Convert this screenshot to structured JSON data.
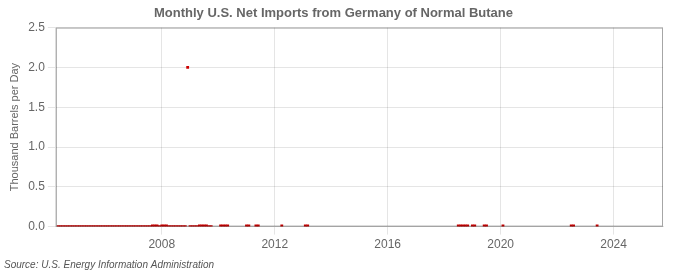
{
  "chart_data": {
    "type": "scatter",
    "title": "Monthly U.S. Net Imports from Germany of Normal Butane",
    "ylabel": "Thousand Barrels per Day",
    "annotation": "Source: U.S. Energy Information Administration",
    "color": "#cc0000",
    "marker": "square",
    "grid": true,
    "xlim": [
      2004.25,
      2025.75
    ],
    "xticks": [
      2008,
      2012,
      2016,
      2020,
      2024
    ],
    "ylim": [
      0.0,
      2.5
    ],
    "yticks": [
      {
        "value": 0.0,
        "label": "0.0"
      },
      0.5,
      {
        "value": 1.0,
        "label": "1.0"
      },
      1.5,
      {
        "value": 2.0,
        "label": "2.0"
      },
      2.5
    ],
    "x": [
      2004.333,
      2004.417,
      2004.5,
      2004.583,
      2004.667,
      2004.75,
      2004.833,
      2004.917,
      2005.0,
      2005.083,
      2005.167,
      2005.25,
      2005.333,
      2005.417,
      2005.5,
      2005.583,
      2005.667,
      2005.75,
      2005.833,
      2005.917,
      2006.0,
      2006.083,
      2006.167,
      2006.25,
      2006.333,
      2006.417,
      2006.5,
      2006.583,
      2006.667,
      2006.75,
      2006.833,
      2006.917,
      2007.0,
      2007.083,
      2007.167,
      2007.25,
      2007.333,
      2007.417,
      2007.5,
      2007.583,
      2007.667,
      2007.75,
      2007.833,
      2007.917,
      2008.0,
      2008.083,
      2008.167,
      2008.25,
      2008.333,
      2008.417,
      2008.5,
      2008.583,
      2008.667,
      2008.75,
      2008.833,
      2008.917,
      2009.0,
      2009.083,
      2009.167,
      2009.25,
      2009.333,
      2009.417,
      2009.5,
      2009.583,
      2009.667,
      2009.75,
      2010.083,
      2010.167,
      2010.25,
      2010.333,
      2011.0,
      2011.083,
      2011.333,
      2011.417,
      2012.25,
      2013.083,
      2013.167,
      2018.5,
      2018.583,
      2018.667,
      2018.75,
      2018.833,
      2019.0,
      2019.083,
      2019.417,
      2019.5,
      2020.083,
      2022.5,
      2022.583,
      2023.417
    ],
    "values": [
      0.0,
      0.0,
      0.0,
      0.0,
      0.0,
      0.0,
      0.0,
      0.0,
      0.0,
      0.0,
      0.0,
      0.0,
      0.0,
      0.0,
      0.0,
      0.0,
      0.0,
      0.0,
      0.0,
      0.0,
      0.0,
      0.0,
      0.0,
      0.0,
      0.0,
      0.0,
      0.0,
      0.0,
      0.0,
      0.0,
      0.0,
      0.0,
      0.0,
      0.0,
      0.0,
      0.0,
      0.0,
      0.0,
      0.0,
      0.0,
      0.01,
      0.01,
      0.01,
      0.0,
      0.01,
      0.01,
      0.01,
      0.0,
      0.0,
      0.0,
      0.0,
      0.0,
      0.0,
      0.0,
      0.0,
      2.0,
      0.0,
      0.0,
      0.0,
      0.0,
      0.01,
      0.01,
      0.01,
      0.01,
      0.0,
      0.0,
      0.01,
      0.01,
      0.01,
      0.01,
      0.01,
      0.01,
      0.01,
      0.01,
      0.01,
      0.01,
      0.01,
      0.01,
      0.01,
      0.01,
      0.01,
      0.01,
      0.01,
      0.01,
      0.01,
      0.01,
      0.01,
      0.01,
      0.01,
      0.01
    ]
  }
}
